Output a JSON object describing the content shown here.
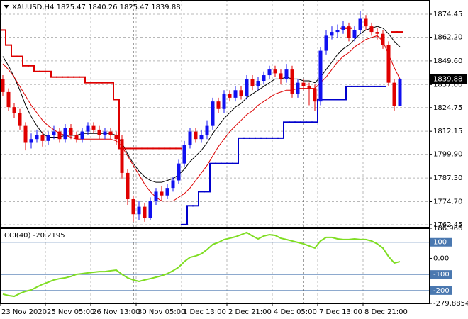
{
  "chart_data": {
    "type": "candlestick",
    "title": "XAUUSD,H4  1825.47 1840.26 1825.47 1839.88",
    "categories": [
      "23 Nov 2020",
      null,
      null,
      null,
      null,
      null,
      null,
      null,
      "25 Nov 05:00",
      null,
      null,
      null,
      null,
      null,
      null,
      null,
      "26 Nov 13:00",
      null,
      null,
      null,
      null,
      null,
      null,
      null,
      "30 Nov 05:00",
      null,
      null,
      null,
      null,
      null,
      null,
      null,
      "1 Dec 13:00",
      null,
      null,
      null,
      null,
      null,
      null,
      null,
      "2 Dec 21:00",
      null,
      null,
      null,
      null,
      null,
      null,
      null,
      "4 Dec 05:00",
      null,
      null,
      null,
      null,
      null,
      null,
      null,
      "7 Dec 13:00",
      null,
      null,
      null,
      null,
      null,
      null,
      null,
      "8 Dec 21:00",
      null,
      null,
      null,
      null,
      null,
      null
    ],
    "open": [
      1840,
      1833,
      1825,
      1822,
      1815,
      1806,
      1808,
      1810,
      1807,
      1810,
      1812,
      1808,
      1814,
      1810,
      1808,
      1812,
      1815,
      1813,
      1810,
      1812,
      1810,
      1808,
      1790,
      1776,
      1768,
      1772,
      1766,
      1775,
      1780,
      1778,
      1782,
      1786,
      1795,
      1805,
      1812,
      1808,
      1810,
      1815,
      1828,
      1824,
      1832,
      1830,
      1834,
      1831,
      1840,
      1836,
      1839,
      1842,
      1845,
      1843,
      1840,
      1845,
      1832,
      1838,
      1836,
      1835,
      1828,
      1855,
      1863,
      1865,
      1866,
      1868,
      1862,
      1866,
      1872,
      1868,
      1865,
      1864,
      1858,
      1838,
      1825.47
    ],
    "high": [
      1842,
      1835,
      1827,
      1824,
      1817,
      1811,
      1813,
      1812,
      1812,
      1815,
      1814,
      1816,
      1816,
      1812,
      1814,
      1817,
      1817,
      1815,
      1814,
      1814,
      1812,
      1810,
      1792,
      1778,
      1775,
      1774,
      1777,
      1782,
      1783,
      1784,
      1788,
      1797,
      1807,
      1814,
      1814,
      1813,
      1818,
      1830,
      1830,
      1834,
      1834,
      1836,
      1836,
      1842,
      1842,
      1841,
      1844,
      1847,
      1847,
      1845,
      1848,
      1847,
      1840,
      1840,
      1838,
      1837,
      1857,
      1866,
      1868,
      1869,
      1871,
      1870,
      1868,
      1876,
      1874,
      1870,
      1867,
      1866,
      1860,
      1840,
      1840.26
    ],
    "low": [
      1831,
      1823,
      1819,
      1813,
      1802,
      1803,
      1806,
      1804,
      1805,
      1808,
      1806,
      1806,
      1808,
      1806,
      1806,
      1810,
      1811,
      1808,
      1808,
      1808,
      1805,
      1787,
      1773,
      1764,
      1765,
      1764,
      1765,
      1773,
      1775,
      1776,
      1780,
      1784,
      1793,
      1803,
      1806,
      1806,
      1808,
      1813,
      1822,
      1822,
      1828,
      1828,
      1829,
      1829,
      1834,
      1834,
      1837,
      1840,
      1841,
      1837,
      1838,
      1830,
      1830,
      1834,
      1826,
      1823,
      1826,
      1853,
      1861,
      1862,
      1864,
      1860,
      1860,
      1864,
      1866,
      1863,
      1861,
      1856,
      1836,
      1823,
      1825.47
    ],
    "close": [
      1833,
      1825,
      1822,
      1815,
      1806,
      1808,
      1810,
      1807,
      1810,
      1812,
      1808,
      1814,
      1810,
      1808,
      1812,
      1815,
      1813,
      1810,
      1812,
      1810,
      1808,
      1790,
      1776,
      1768,
      1772,
      1766,
      1775,
      1780,
      1778,
      1782,
      1786,
      1795,
      1805,
      1812,
      1808,
      1810,
      1815,
      1828,
      1824,
      1832,
      1830,
      1834,
      1831,
      1840,
      1836,
      1839,
      1842,
      1845,
      1843,
      1840,
      1845,
      1832,
      1838,
      1836,
      1835,
      1828,
      1855,
      1863,
      1865,
      1866,
      1868,
      1862,
      1866,
      1872,
      1868,
      1865,
      1864,
      1858,
      1838,
      1825.47,
      1839.88
    ],
    "up_color": "#1010f0",
    "down_color": "#e00000",
    "ylim": [
      1761.3,
      1882.0
    ],
    "yticks": [
      1874.45,
      {
        "value": 1862.2,
        "label": "1862.20"
      },
      {
        "value": 1849.6,
        "label": "1849.60"
      },
      {
        "value": 1837,
        "label": "1837.00"
      },
      1824.75,
      1812.15,
      {
        "value": 1799.9,
        "label": "1799.90"
      },
      {
        "value": 1787.3,
        "label": "1787.30"
      },
      {
        "value": 1774.7,
        "label": "1774.70"
      },
      1762.45
    ],
    "grid": true,
    "last_price": 1839.88,
    "lines": [
      {
        "color": "#000000",
        "values": [
          1852,
          1847,
          1841,
          1834,
          1826,
          1820,
          1815,
          1811,
          1809,
          1809,
          1809,
          1810,
          1810,
          1810,
          1811,
          1811,
          1811,
          1811,
          1811,
          1811,
          1810,
          1806,
          1800,
          1795,
          1791,
          1788,
          1786,
          1785,
          1785,
          1786,
          1787,
          1789,
          1792,
          1796,
          1799,
          1802,
          1806,
          1811,
          1815,
          1819,
          1822,
          1825,
          1827,
          1830,
          1832,
          1834,
          1836,
          1838,
          1840,
          1840,
          1841,
          1840,
          1840,
          1839,
          1839,
          1838,
          1841,
          1845,
          1849,
          1853,
          1856,
          1858,
          1861,
          1864,
          1866,
          1867,
          1868,
          1867,
          1864,
          1860,
          1857
        ]
      },
      {
        "color": "#dd0000",
        "values": [
          1848,
          1845,
          1841,
          1836,
          1831,
          1826,
          1822,
          1818,
          1815,
          1813,
          1811,
          1810,
          1809,
          1808,
          1808,
          1808,
          1808,
          1808,
          1808,
          1808,
          1807,
          1804,
          1799,
          1794,
          1789,
          1784,
          1780,
          1777,
          1775,
          1775,
          1775,
          1777,
          1779,
          1782,
          1786,
          1790,
          1794,
          1799,
          1804,
          1808,
          1812,
          1815,
          1818,
          1821,
          1823,
          1826,
          1828,
          1830,
          1832,
          1833,
          1834,
          1834,
          1835,
          1835,
          1835,
          1835,
          1838,
          1841,
          1845,
          1849,
          1852,
          1854,
          1857,
          1859,
          1861,
          1862,
          1863,
          1860,
          1853,
          1846,
          1840
        ]
      },
      {
        "color": "#dd0000",
        "step": true,
        "values": [
          1866,
          1858,
          1852,
          1852,
          1847,
          1847,
          1844,
          1844,
          1844,
          1841,
          1841,
          1841,
          1841,
          1841,
          1841,
          1838,
          1838,
          1838,
          1838,
          1838,
          1829,
          1803,
          1803,
          1803,
          1803,
          1803,
          1803,
          1803,
          1803,
          1803,
          1803,
          1803,
          null,
          null,
          null,
          null,
          null,
          null,
          null,
          null,
          null,
          null,
          null,
          null,
          null,
          null,
          null,
          null,
          null,
          null,
          null,
          null,
          null,
          null,
          null,
          null,
          null,
          null,
          null,
          null,
          1867,
          1867,
          null,
          null,
          null,
          null,
          null,
          null,
          null,
          1865,
          1865
        ]
      },
      {
        "color": "#0000cc",
        "step": true,
        "values": [
          null,
          null,
          null,
          null,
          null,
          null,
          null,
          null,
          null,
          null,
          null,
          null,
          null,
          null,
          null,
          null,
          null,
          null,
          null,
          null,
          null,
          null,
          null,
          null,
          null,
          null,
          null,
          null,
          null,
          null,
          null,
          null,
          1762.5,
          1772.5,
          1772.5,
          1780,
          1780,
          1795,
          1795,
          1795,
          1795,
          1795,
          1808.5,
          1808.5,
          1808.5,
          1808.5,
          1808.5,
          1808.5,
          1808.5,
          1808.5,
          1817,
          1817,
          1817,
          1817,
          1817,
          1817,
          1829,
          1829,
          1829,
          1829,
          1829,
          1836,
          1836,
          1836,
          1836,
          1836,
          1836,
          1836,
          null,
          null,
          null
        ]
      }
    ],
    "cci": {
      "type": "line",
      "title": "CCI(40) -20.2195",
      "color": "#7fdd22",
      "values": [
        -222,
        -231,
        -236,
        -218,
        -205,
        -196,
        -178,
        -161,
        -148,
        -134,
        -126,
        -121,
        -112,
        -99,
        -95,
        -90,
        -86,
        -82,
        -82,
        -77,
        -73,
        -99,
        -121,
        -134,
        -143,
        -134,
        -126,
        -117,
        -108,
        -95,
        -77,
        -55,
        -20,
        6,
        15,
        28,
        55,
        86,
        99,
        117,
        125,
        134,
        147,
        161,
        139,
        121,
        139,
        147,
        143,
        125,
        117,
        108,
        99,
        90,
        77,
        64,
        108,
        130,
        130,
        121,
        117,
        117,
        121,
        117,
        117,
        108,
        90,
        64,
        11,
        -29,
        -20.2195
      ],
      "ylim": [
        -279.8854,
        186.966
      ],
      "yticks": [
        186.966,
        100,
        {
          "value": 0,
          "label": "0.00"
        },
        -100,
        -200,
        -279.8854
      ],
      "levels": [
        100,
        -100,
        -200
      ],
      "level_color": "#4a78b0"
    }
  }
}
